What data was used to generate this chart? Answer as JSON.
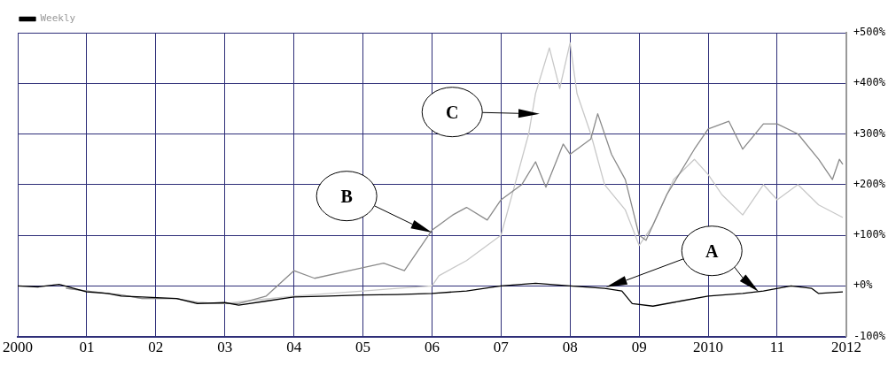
{
  "chart_data": {
    "type": "line",
    "legend": "top left",
    "grid": true,
    "marker": "none",
    "line_style": "solid",
    "xlim": [
      2000,
      2012
    ],
    "xticks": [
      {
        "value": 2000,
        "label": "2000"
      },
      {
        "value": 2001,
        "label": "01"
      },
      {
        "value": 2002,
        "label": "02"
      },
      {
        "value": 2003,
        "label": "03"
      },
      {
        "value": 2004,
        "label": "04"
      },
      {
        "value": 2005,
        "label": "05"
      },
      {
        "value": 2006,
        "label": "06"
      },
      {
        "value": 2007,
        "label": "07"
      },
      {
        "value": 2008,
        "label": "08"
      },
      {
        "value": 2009,
        "label": "09"
      },
      {
        "value": 2010,
        "label": "2010"
      },
      {
        "value": 2011,
        "label": "11"
      },
      {
        "value": 2012,
        "label": "2012"
      }
    ],
    "ylim": [
      -100,
      500
    ],
    "yticks": [
      {
        "value": -100,
        "label": "-100%"
      },
      {
        "value": 0,
        "label": "+0%"
      },
      {
        "value": 100,
        "label": "+100%"
      },
      {
        "value": 200,
        "label": "+200%"
      },
      {
        "value": 300,
        "label": "+300%"
      },
      {
        "value": 400,
        "label": "+400%"
      },
      {
        "value": 500,
        "label": "+500%"
      }
    ],
    "series": [
      {
        "name": "Weekly",
        "color": "#000000",
        "x": [
          2000,
          2000.3,
          2000.6,
          2001,
          2001.3,
          2001.5,
          2001.8,
          2002.3,
          2002.6,
          2003,
          2003.2,
          2003.6,
          2004,
          2004.5,
          2005,
          2005.5,
          2006,
          2006.5,
          2007,
          2007.5,
          2008,
          2008.5,
          2008.75,
          2008.9,
          2009.2,
          2009.6,
          2010,
          2010.5,
          2010.8,
          2011.2,
          2011.5,
          2011.6,
          2011.95
        ],
        "values": [
          0,
          -2,
          3,
          -12,
          -15,
          -20,
          -22,
          -25,
          -35,
          -33,
          -38,
          -30,
          -22,
          -20,
          -18,
          -17,
          -15,
          -10,
          0,
          5,
          0,
          -5,
          -10,
          -35,
          -40,
          -30,
          -20,
          -15,
          -10,
          0,
          -5,
          -15,
          -12
        ]
      },
      {
        "color": "#8a8a8a",
        "x": [
          2000.7,
          2001,
          2001.5,
          2001.8,
          2002.3,
          2002.6,
          2003,
          2003.2,
          2003.6,
          2004,
          2004.3,
          2004.8,
          2005.3,
          2005.6,
          2006,
          2006.3,
          2006.5,
          2006.8,
          2007,
          2007.3,
          2007.5,
          2007.65,
          2007.9,
          2008,
          2008.3,
          2008.4,
          2008.6,
          2008.8,
          2009,
          2009.1,
          2009.4,
          2009.8,
          2010,
          2010.3,
          2010.5,
          2010.8,
          2011,
          2011.3,
          2011.6,
          2011.8,
          2011.9,
          2011.95
        ],
        "values": [
          -5,
          -10,
          -18,
          -25,
          -25,
          -33,
          -35,
          -35,
          -20,
          30,
          15,
          30,
          45,
          30,
          110,
          140,
          155,
          130,
          170,
          200,
          245,
          195,
          280,
          260,
          290,
          340,
          260,
          210,
          100,
          90,
          180,
          270,
          310,
          325,
          270,
          320,
          320,
          300,
          250,
          210,
          250,
          240
        ]
      },
      {
        "color": "#c8c8c8",
        "x": [
          2000.7,
          2001,
          2001.5,
          2001.8,
          2002.3,
          2002.6,
          2003,
          2003.3,
          2004,
          2005,
          2005.5,
          2006,
          2006.1,
          2006.5,
          2007,
          2007.2,
          2007.4,
          2007.5,
          2007.7,
          2007.85,
          2008,
          2008.1,
          2008.3,
          2008.5,
          2008.8,
          2009,
          2009.2,
          2009.5,
          2009.8,
          2010,
          2010.2,
          2010.5,
          2010.8,
          2011,
          2011.3,
          2011.6,
          2011.95
        ],
        "values": [
          -5,
          -10,
          -18,
          -25,
          -25,
          -33,
          -35,
          -30,
          -20,
          -10,
          -5,
          0,
          20,
          50,
          100,
          200,
          300,
          380,
          470,
          390,
          480,
          380,
          300,
          200,
          150,
          80,
          120,
          210,
          250,
          220,
          180,
          140,
          200,
          170,
          200,
          160,
          135
        ]
      }
    ],
    "annotations": [
      "B",
      "C",
      "A"
    ]
  }
}
